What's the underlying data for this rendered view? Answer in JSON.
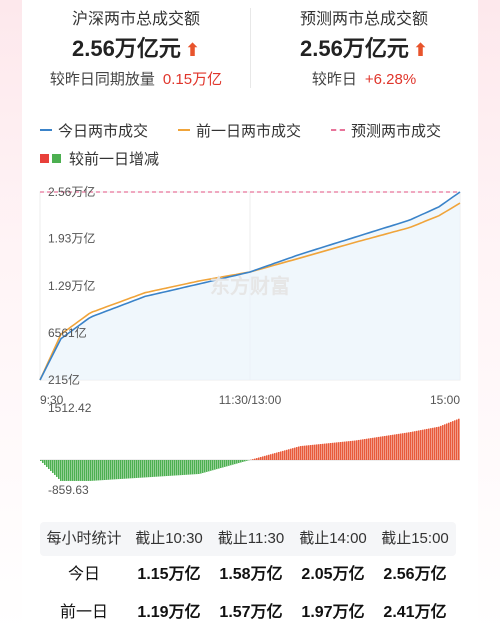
{
  "summary": {
    "left": {
      "title": "沪深两市总成交额",
      "value": "2.56万亿元",
      "sub_label": "较昨日同期放量",
      "sub_value": "0.15万亿"
    },
    "right": {
      "title": "预测两市总成交额",
      "value": "2.56万亿元",
      "sub_label": "较昨日",
      "sub_value": "+6.28%"
    },
    "arrow_glyph": "🠕"
  },
  "legend": {
    "today": "今日两市成交",
    "prev": "前一日两市成交",
    "forecast": "预测两市成交",
    "diff": "较前一日增减"
  },
  "colors": {
    "today": "#3a83c9",
    "prev": "#f0a43a",
    "forecast": "#e8749a",
    "up": "#e85a3a",
    "down": "#4caf50"
  },
  "watermark": "东方财富",
  "chart_data": {
    "type": "line",
    "y_ticks": [
      "2.56万亿",
      "1.93万亿",
      "1.29万亿",
      "6561亿",
      "215亿"
    ],
    "y_tick_values": [
      25600,
      19300,
      12900,
      6561,
      215
    ],
    "x_ticks": [
      "9:30",
      "11:30/13:00",
      "15:00"
    ],
    "diff_ticks": [
      "1512.42",
      "-859.63"
    ],
    "diff_range": [
      -859.63,
      1512.42
    ],
    "series": [
      {
        "name": "今日两市成交",
        "x": [
          0,
          0.05,
          0.12,
          0.25,
          0.38,
          0.5,
          0.62,
          0.75,
          0.88,
          0.95,
          1.0
        ],
        "values": [
          215,
          5800,
          8700,
          11500,
          13200,
          14800,
          17200,
          19500,
          21800,
          23600,
          25600
        ]
      },
      {
        "name": "前一日两市成交",
        "x": [
          0,
          0.05,
          0.12,
          0.25,
          0.38,
          0.5,
          0.62,
          0.75,
          0.88,
          0.95,
          1.0
        ],
        "values": [
          215,
          6400,
          9300,
          12000,
          13600,
          14800,
          16700,
          18800,
          20800,
          22400,
          24100
        ]
      }
    ],
    "forecast_value": 25600
  },
  "stats": {
    "header": [
      "每小时统计",
      "截止10:30",
      "截止11:30",
      "截止14:00",
      "截止15:00"
    ],
    "rows": [
      {
        "label": "今日",
        "values": [
          "1.15万亿",
          "1.58万亿",
          "2.05万亿",
          "2.56万亿"
        ]
      },
      {
        "label": "前一日",
        "values": [
          "1.19万亿",
          "1.57万亿",
          "1.97万亿",
          "2.41万亿"
        ]
      }
    ]
  }
}
